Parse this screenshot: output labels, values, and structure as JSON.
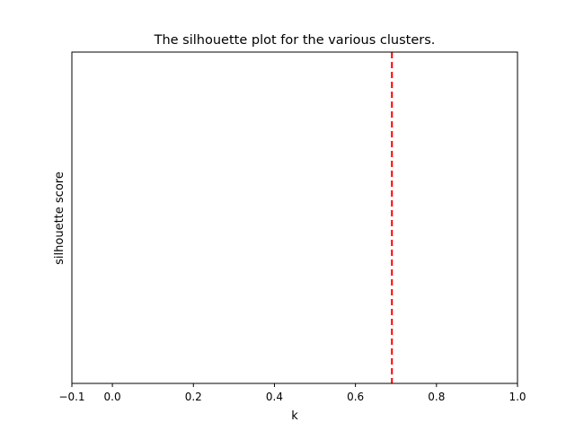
{
  "chart_data": {
    "type": "line",
    "title": "The silhouette plot for the various clusters.",
    "xlabel": "k",
    "ylabel": "silhouette score",
    "xlim": [
      -0.1,
      1.0
    ],
    "xticks": [
      -0.1,
      0.0,
      0.2,
      0.4,
      0.6,
      0.8,
      1.0
    ],
    "xtick_labels": [
      "−0.1",
      "0.0",
      "0.2",
      "0.4",
      "0.6",
      "0.8",
      "1.0"
    ],
    "yticks": [],
    "grid": false,
    "series": [],
    "reference_lines": [
      {
        "orientation": "vertical",
        "x": 0.69,
        "style": "dashed",
        "color": "#ff0000"
      }
    ]
  }
}
